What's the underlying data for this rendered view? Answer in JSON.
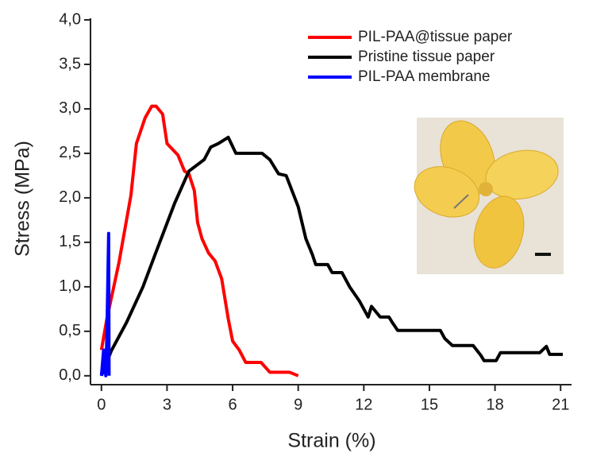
{
  "chart_data": {
    "type": "line",
    "xlabel": "Strain (%)",
    "ylabel": "Stress (MPa)",
    "xlim": [
      -0.5,
      21.5
    ],
    "ylim": [
      -0.1,
      4.0
    ],
    "xticks": [
      0,
      3,
      6,
      9,
      12,
      15,
      18,
      21
    ],
    "yticks": [
      {
        "value": 0,
        "label": "0,0"
      },
      {
        "value": 0.5,
        "label": "0,5"
      },
      {
        "value": 1,
        "label": "1,0"
      },
      {
        "value": 1.5,
        "label": "1,5"
      },
      {
        "value": 2,
        "label": "2,0"
      },
      {
        "value": 2.5,
        "label": "2,5"
      },
      {
        "value": 3,
        "label": "3,0"
      },
      {
        "value": 3.5,
        "label": "3,5"
      },
      {
        "value": 4,
        "label": "4,0"
      }
    ],
    "legend": "upper right",
    "series": [
      {
        "name": "PIL-PAA@tissue paper",
        "color": "#ff0000",
        "x": [
          0,
          0.25,
          0.8,
          1.35,
          1.6,
          2.0,
          2.3,
          2.5,
          2.8,
          3.0,
          3.5,
          3.8,
          4.0,
          4.25,
          4.4,
          4.6,
          4.9,
          5.2,
          5.5,
          5.8,
          6.0,
          6.3,
          6.6,
          7.3,
          7.7,
          8.6,
          9.0
        ],
        "values": [
          0.29,
          0.64,
          1.27,
          2.03,
          2.61,
          2.9,
          3.03,
          3.03,
          2.94,
          2.61,
          2.48,
          2.3,
          2.27,
          2.08,
          1.72,
          1.54,
          1.38,
          1.29,
          1.09,
          0.64,
          0.39,
          0.29,
          0.15,
          0.15,
          0.04,
          0.04,
          0.0
        ]
      },
      {
        "name": "Pristine tissue paper",
        "color": "#000000",
        "x": [
          0,
          0.45,
          1.15,
          1.9,
          2.45,
          3.35,
          4.0,
          4.7,
          5.0,
          5.35,
          5.8,
          6.15,
          7.35,
          7.7,
          8.1,
          8.45,
          9.0,
          9.35,
          9.65,
          9.8,
          10.35,
          10.55,
          11.0,
          11.35,
          11.8,
          12.2,
          12.35,
          12.75,
          13.15,
          13.3,
          13.55,
          15.5,
          15.7,
          16.05,
          17.0,
          17.35,
          17.5,
          18.05,
          18.25,
          20.05,
          20.35,
          20.5,
          21.1
        ],
        "values": [
          0.0,
          0.28,
          0.6,
          1.0,
          1.36,
          1.94,
          2.3,
          2.43,
          2.57,
          2.61,
          2.68,
          2.5,
          2.5,
          2.43,
          2.27,
          2.25,
          1.9,
          1.54,
          1.36,
          1.25,
          1.25,
          1.16,
          1.16,
          1.0,
          0.84,
          0.66,
          0.78,
          0.66,
          0.66,
          0.6,
          0.51,
          0.51,
          0.42,
          0.34,
          0.34,
          0.23,
          0.17,
          0.17,
          0.26,
          0.26,
          0.33,
          0.24,
          0.24
        ]
      },
      {
        "name": "PIL-PAA membrane",
        "color": "#0000ff",
        "x": [
          0,
          0.1,
          0.2,
          0.25,
          0.33,
          0.35
        ],
        "values": [
          0.0,
          0.29,
          0.0,
          0.46,
          1.6,
          0.0
        ]
      }
    ]
  }
}
